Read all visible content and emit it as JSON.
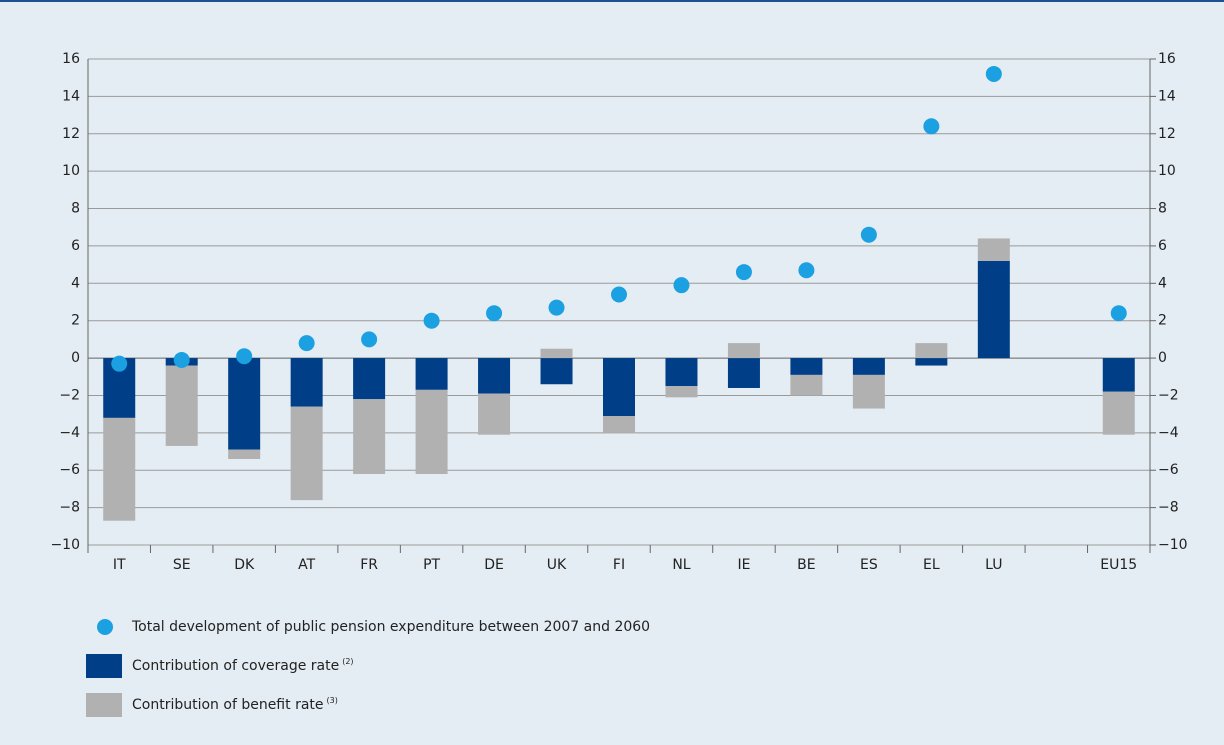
{
  "chart_data": {
    "type": "bar",
    "categories": [
      "IT",
      "SE",
      "DK",
      "AT",
      "FR",
      "PT",
      "DE",
      "UK",
      "FI",
      "NL",
      "IE",
      "BE",
      "ES",
      "EL",
      "LU",
      null,
      "EU15"
    ],
    "series": [
      {
        "name": "Total development of public pension expenditure between 2007 and 2060",
        "type": "scatter",
        "color": "#1ba0e2",
        "values": [
          -0.3,
          -0.1,
          0.1,
          0.8,
          1.0,
          2.0,
          2.4,
          2.7,
          3.4,
          3.9,
          4.6,
          4.7,
          6.6,
          12.4,
          15.2,
          null,
          2.4
        ]
      },
      {
        "name": "Contribution of coverage rate",
        "footnote": "(2)",
        "type": "bar",
        "color": "#003f87",
        "values": [
          -3.2,
          -0.4,
          -4.9,
          -2.6,
          -2.2,
          -1.7,
          -1.9,
          -1.4,
          -3.1,
          -1.5,
          -1.6,
          -0.9,
          -0.9,
          -0.4,
          5.2,
          null,
          -1.8
        ]
      },
      {
        "name": "Contribution of benefit rate",
        "footnote": "(3)",
        "type": "bar",
        "color": "#b1b1b1",
        "values": [
          -5.5,
          -4.3,
          -0.5,
          -5.0,
          -4.0,
          -4.5,
          -2.2,
          0.5,
          -0.9,
          -0.6,
          0.8,
          -1.1,
          -1.8,
          0.8,
          1.2,
          null,
          -2.3
        ]
      }
    ],
    "ylim": [
      -10,
      16
    ],
    "yticks": [
      {
        "value": -10,
        "label": "−10"
      },
      {
        "value": -8,
        "label": "−8"
      },
      {
        "value": -6,
        "label": "−6"
      },
      {
        "value": -4,
        "label": "−4"
      },
      {
        "value": -2,
        "label": "−2"
      },
      0,
      2,
      4,
      6,
      8,
      10,
      12,
      14,
      16
    ],
    "y2lim": [
      -10,
      16
    ],
    "y2ticks": [
      {
        "value": -10,
        "label": "−10"
      },
      {
        "value": -8,
        "label": "−8"
      },
      {
        "value": -6,
        "label": "−6"
      },
      {
        "value": -4,
        "label": "−4"
      },
      {
        "value": -2,
        "label": "−2"
      },
      0,
      2,
      4,
      6,
      8,
      10,
      12,
      14,
      16
    ],
    "grid": true
  }
}
